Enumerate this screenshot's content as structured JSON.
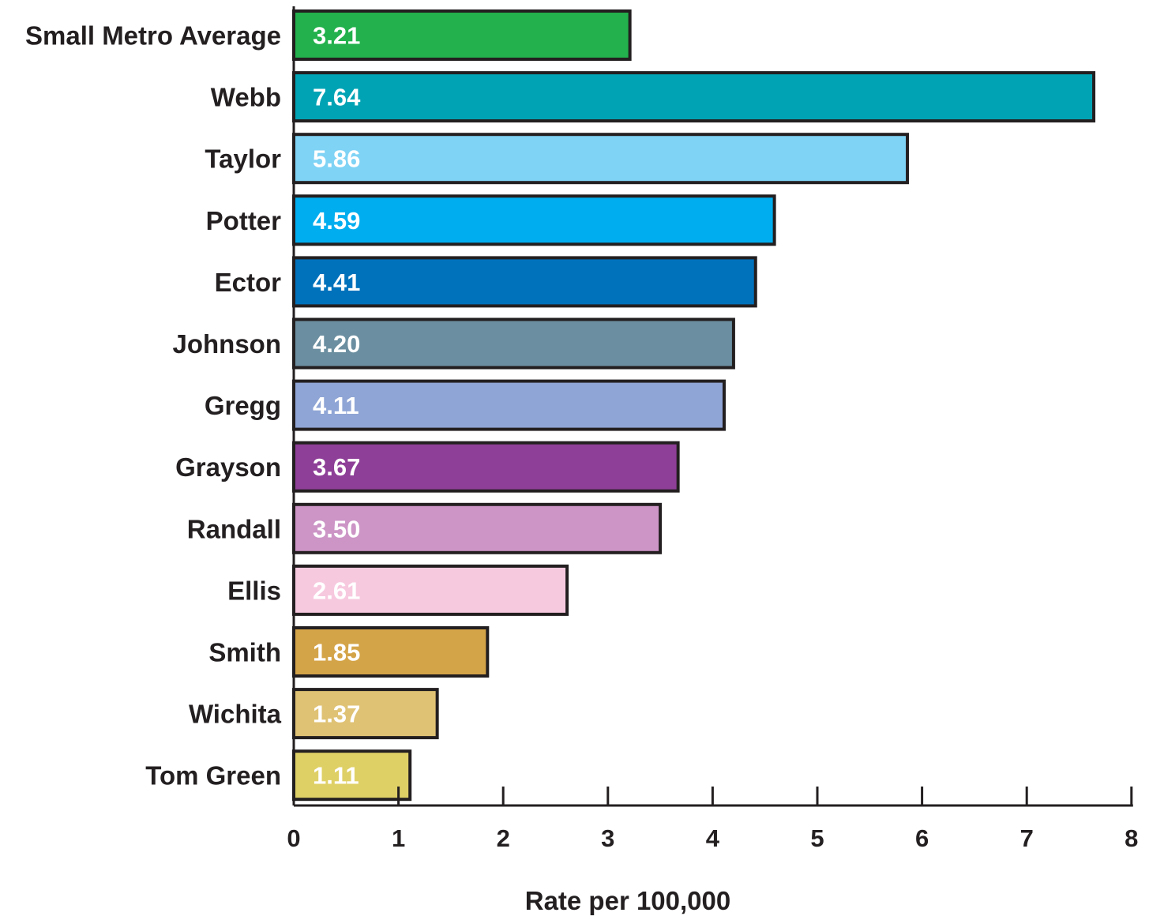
{
  "chart_data": {
    "type": "bar",
    "orientation": "horizontal",
    "categories": [
      "Small Metro Average",
      "Webb",
      "Taylor",
      "Potter",
      "Ector",
      "Johnson",
      "Gregg",
      "Grayson",
      "Randall",
      "Ellis",
      "Smith",
      "Wichita",
      "Tom Green"
    ],
    "values": [
      3.21,
      7.64,
      5.86,
      4.59,
      4.41,
      4.2,
      4.11,
      3.67,
      3.5,
      2.61,
      1.85,
      1.37,
      1.11
    ],
    "value_labels": [
      "3.21",
      "7.64",
      "5.86",
      "4.59",
      "4.41",
      "4.20",
      "4.11",
      "3.67",
      "3.50",
      "2.61",
      "1.85",
      "1.37",
      "1.11"
    ],
    "colors": [
      "#22b14c",
      "#00a3b4",
      "#7fd3f5",
      "#00aeef",
      "#0072bc",
      "#6b8fa0",
      "#8fa5d5",
      "#8e3f97",
      "#cc95c6",
      "#f7c9df",
      "#d4a448",
      "#dfc274",
      "#dfd066"
    ],
    "xlabel": "Rate per 100,000",
    "ylabel": "",
    "xlim": [
      0,
      8
    ],
    "xticks": [
      "0",
      "1",
      "2",
      "3",
      "4",
      "5",
      "6",
      "7",
      "8"
    ],
    "grid": false,
    "legend": "none",
    "bar_stroke_color": "#231f20"
  }
}
